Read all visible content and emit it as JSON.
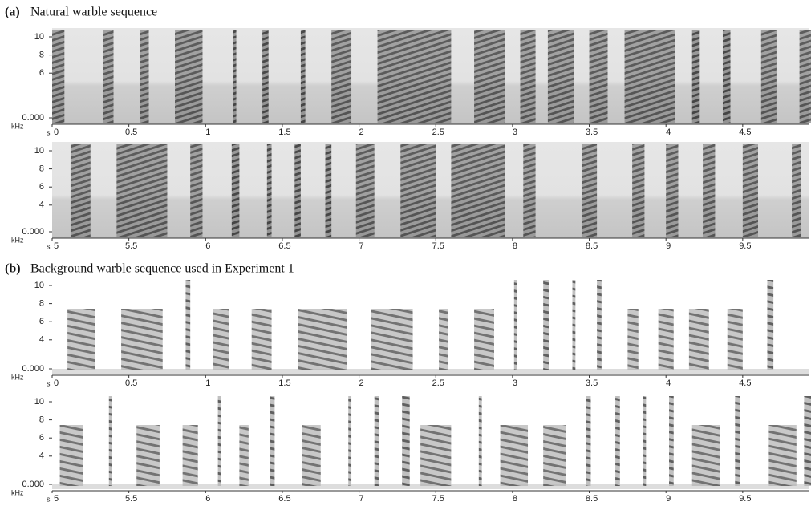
{
  "figure": {
    "panels": [
      {
        "label": "(a)",
        "title": "Natural warble sequence"
      },
      {
        "label": "(b)",
        "title": "Background warble sequence used in Experiment 1"
      }
    ],
    "spectrograms": [
      {
        "y_unit": "kHz",
        "x_unit": "s",
        "yticks": [
          "10",
          "8",
          "6",
          "0.000"
        ],
        "xticks": [
          "0",
          "0.5",
          "1",
          "1.5",
          "2",
          "2.5",
          "3",
          "3.5",
          "4",
          "4.5"
        ]
      },
      {
        "y_unit": "kHz",
        "x_unit": "s",
        "yticks": [
          "10",
          "8",
          "6",
          "4",
          "0.000"
        ],
        "xticks": [
          "5",
          "5.5",
          "6",
          "6.5",
          "7",
          "7.5",
          "8",
          "8.5",
          "9",
          "9.5"
        ]
      },
      {
        "y_unit": "kHz",
        "x_unit": "s",
        "yticks": [
          "10",
          "8",
          "6",
          "4",
          "0.000"
        ],
        "xticks": [
          "0",
          "0.5",
          "1",
          "1.5",
          "2",
          "2.5",
          "3",
          "3.5",
          "4",
          "4.5"
        ]
      },
      {
        "y_unit": "kHz",
        "x_unit": "s",
        "yticks": [
          "10",
          "8",
          "6",
          "4",
          "0.000"
        ],
        "xticks": [
          "5",
          "5.5",
          "6",
          "6.5",
          "7",
          "7.5",
          "8",
          "8.5",
          "9",
          "9.5"
        ]
      }
    ]
  }
}
